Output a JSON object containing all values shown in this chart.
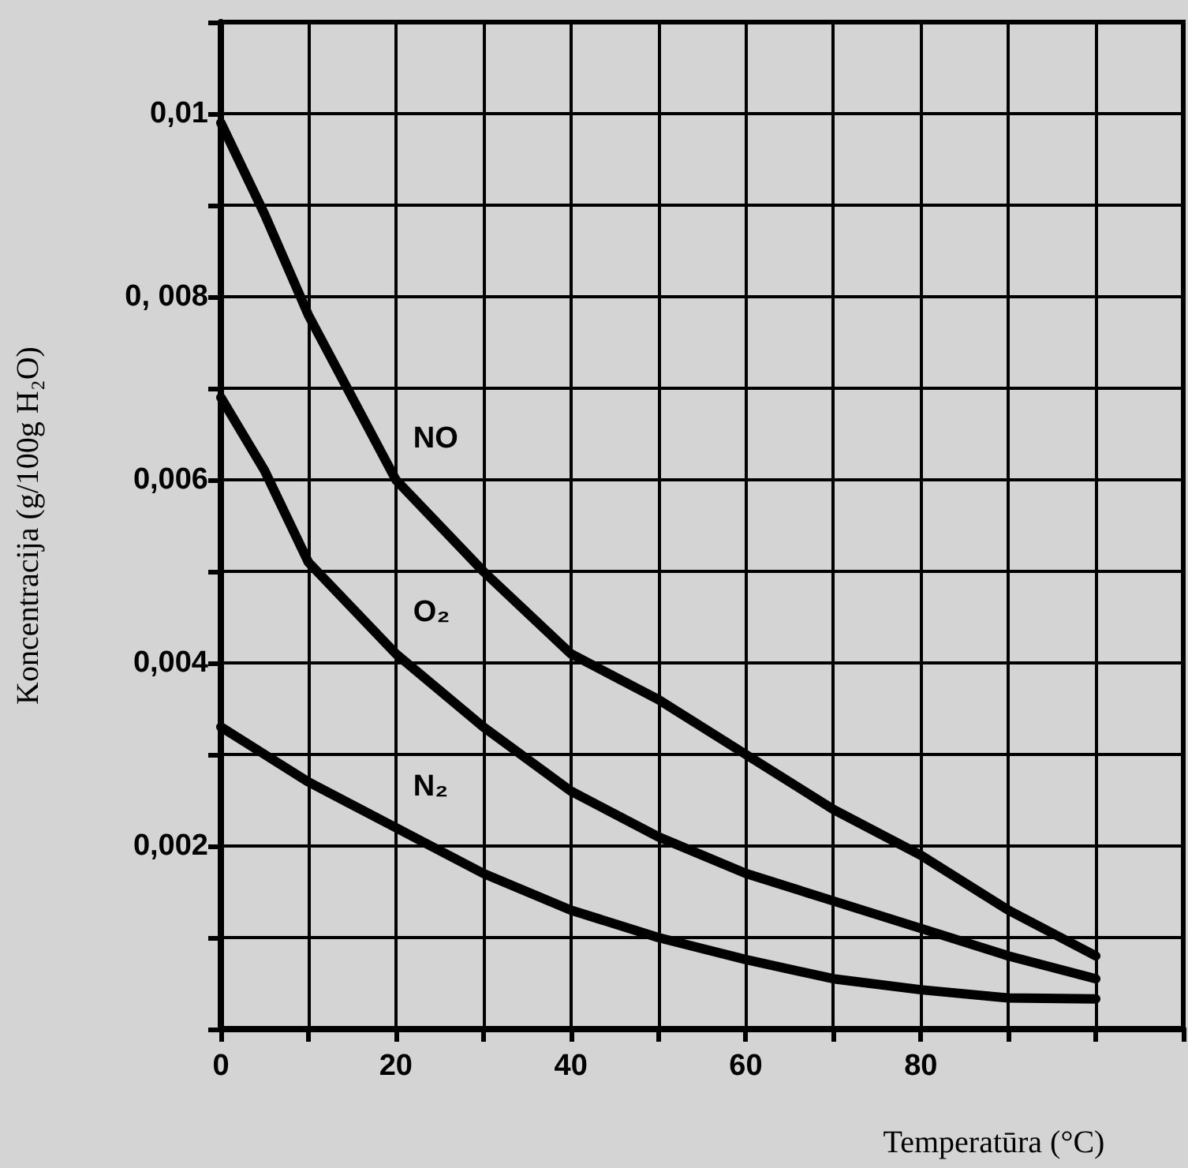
{
  "chart_data": {
    "type": "line",
    "xlabel": "Temperatūra (°C)",
    "ylabel": "Koncentracija (g/100g H₂O)",
    "x": [
      0,
      5,
      10,
      20,
      30,
      40,
      50,
      60,
      70,
      80,
      90,
      100
    ],
    "series": [
      {
        "name": "NO",
        "color": "#000000",
        "values": [
          0.0099,
          0.0089,
          0.0078,
          0.006,
          0.005,
          0.0041,
          0.0036,
          0.003,
          0.0024,
          0.0019,
          0.0013,
          0.0008
        ]
      },
      {
        "name": "O₂",
        "color": "#000000",
        "values": [
          0.0069,
          0.0061,
          0.0051,
          0.0041,
          0.0033,
          0.0026,
          0.0021,
          0.0017,
          0.0014,
          0.0011,
          0.0008,
          0.00055
        ]
      },
      {
        "name": "N₂",
        "color": "#000000",
        "values": [
          0.0033,
          0.003,
          0.0027,
          0.0022,
          0.0017,
          0.0013,
          0.001,
          0.00076,
          0.00055,
          0.00043,
          0.00034,
          0.00033
        ]
      }
    ],
    "xlim": [
      0,
      110
    ],
    "xticks": [
      {
        "value": 0,
        "label": "0"
      },
      {
        "value": 10,
        "label": null
      },
      20,
      {
        "value": 30,
        "label": null
      },
      40,
      {
        "value": 50,
        "label": null
      },
      60,
      {
        "value": 70,
        "label": null
      },
      80,
      {
        "value": 90,
        "label": null
      },
      {
        "value": 100,
        "label": null
      },
      {
        "value": 110,
        "label": null
      }
    ],
    "ylim": [
      0,
      0.011
    ],
    "yticks": [
      {
        "value": 0,
        "label": null
      },
      {
        "value": 0.001,
        "label": null
      },
      {
        "value": 0.002,
        "label": "0,002"
      },
      {
        "value": 0.003,
        "label": null
      },
      {
        "value": 0.004,
        "label": "0,004"
      },
      {
        "value": 0.005,
        "label": null
      },
      {
        "value": 0.006,
        "label": "0,006"
      },
      {
        "value": 0.007,
        "label": null
      },
      {
        "value": 0.008,
        "label": "0, 008"
      },
      {
        "value": 0.009,
        "label": null
      },
      {
        "value": 0.01,
        "label": "0,01"
      },
      {
        "value": 0.011,
        "label": null
      }
    ],
    "grid": true,
    "marker": "none",
    "line_style": "solid",
    "legend": false
  }
}
